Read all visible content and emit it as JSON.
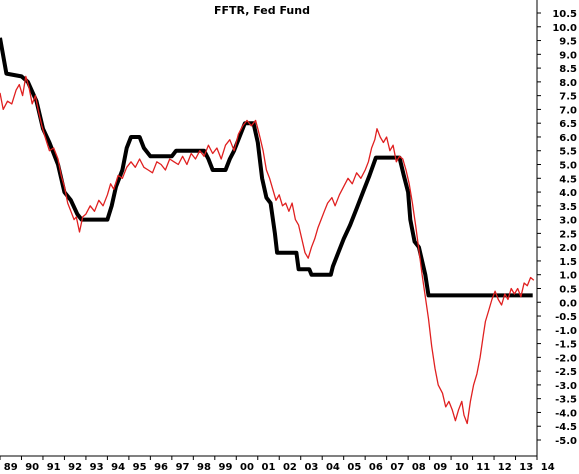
{
  "chart_data": {
    "type": "line",
    "title": "FFTR, Fed Fund",
    "xlabel": "",
    "ylabel": "",
    "xlim": [
      1989,
      2014
    ],
    "ylim": [
      -5.0,
      10.5
    ],
    "grid": false,
    "y_ticks": [
      "10.5",
      "10.0",
      "9.5",
      "9.0",
      "8.5",
      "8.0",
      "7.5",
      "7.0",
      "6.5",
      "6.0",
      "5.5",
      "5.0",
      "4.5",
      "4.0",
      "3.5",
      "3.0",
      "2.5",
      "2.0",
      "1.5",
      "1.0",
      "0.5",
      "0.0",
      "-0.5",
      "-1.0",
      "-1.5",
      "-2.0",
      "-2.5",
      "-3.0",
      "-3.5",
      "-4.0",
      "-4.5",
      "-5.0"
    ],
    "x_ticks": [
      "89",
      "90",
      "91",
      "92",
      "93",
      "94",
      "95",
      "96",
      "97",
      "98",
      "99",
      "00",
      "01",
      "02",
      "03",
      "04",
      "05",
      "06",
      "07",
      "08",
      "09",
      "10",
      "11",
      "12",
      "13",
      "14"
    ],
    "series": [
      {
        "color": "#000000",
        "style": "thick",
        "points": [
          [
            1989.0,
            9.6
          ],
          [
            1989.3,
            8.3
          ],
          [
            1990.0,
            8.2
          ],
          [
            1990.3,
            8.0
          ],
          [
            1990.7,
            7.3
          ],
          [
            1991.0,
            6.3
          ],
          [
            1991.3,
            5.8
          ],
          [
            1991.7,
            5.0
          ],
          [
            1992.0,
            4.0
          ],
          [
            1992.3,
            3.7
          ],
          [
            1992.6,
            3.2
          ],
          [
            1992.8,
            3.0
          ],
          [
            1993.0,
            3.0
          ],
          [
            1994.0,
            3.0
          ],
          [
            1994.2,
            3.5
          ],
          [
            1994.4,
            4.2
          ],
          [
            1994.7,
            4.8
          ],
          [
            1994.9,
            5.6
          ],
          [
            1995.1,
            6.0
          ],
          [
            1995.5,
            6.0
          ],
          [
            1995.7,
            5.6
          ],
          [
            1996.0,
            5.3
          ],
          [
            1997.0,
            5.3
          ],
          [
            1997.2,
            5.5
          ],
          [
            1998.5,
            5.5
          ],
          [
            1998.7,
            5.2
          ],
          [
            1998.9,
            4.8
          ],
          [
            1999.5,
            4.8
          ],
          [
            1999.7,
            5.2
          ],
          [
            1999.9,
            5.5
          ],
          [
            2000.1,
            5.9
          ],
          [
            2000.4,
            6.5
          ],
          [
            2000.8,
            6.5
          ],
          [
            2001.0,
            5.8
          ],
          [
            2001.2,
            4.5
          ],
          [
            2001.4,
            3.8
          ],
          [
            2001.6,
            3.6
          ],
          [
            2001.8,
            2.5
          ],
          [
            2001.9,
            1.8
          ],
          [
            2002.8,
            1.8
          ],
          [
            2002.9,
            1.2
          ],
          [
            2003.4,
            1.2
          ],
          [
            2003.5,
            1.0
          ],
          [
            2004.4,
            1.0
          ],
          [
            2004.5,
            1.3
          ],
          [
            2004.7,
            1.7
          ],
          [
            2005.0,
            2.3
          ],
          [
            2005.3,
            2.8
          ],
          [
            2005.6,
            3.4
          ],
          [
            2005.9,
            4.0
          ],
          [
            2006.2,
            4.6
          ],
          [
            2006.5,
            5.25
          ],
          [
            2007.6,
            5.25
          ],
          [
            2007.8,
            4.6
          ],
          [
            2008.0,
            4.0
          ],
          [
            2008.1,
            3.0
          ],
          [
            2008.3,
            2.2
          ],
          [
            2008.5,
            2.0
          ],
          [
            2008.8,
            1.0
          ],
          [
            2008.95,
            0.25
          ],
          [
            2013.8,
            0.25
          ]
        ]
      },
      {
        "color": "#e02020",
        "style": "thin",
        "points": [
          [
            1989.0,
            7.6
          ],
          [
            1989.15,
            7.0
          ],
          [
            1989.35,
            7.3
          ],
          [
            1989.55,
            7.2
          ],
          [
            1989.75,
            7.7
          ],
          [
            1989.9,
            7.9
          ],
          [
            1990.05,
            7.5
          ],
          [
            1990.2,
            8.2
          ],
          [
            1990.35,
            7.8
          ],
          [
            1990.5,
            7.2
          ],
          [
            1990.65,
            7.5
          ],
          [
            1990.8,
            6.9
          ],
          [
            1990.95,
            6.4
          ],
          [
            1991.1,
            6.0
          ],
          [
            1991.3,
            5.5
          ],
          [
            1991.5,
            5.6
          ],
          [
            1991.7,
            5.2
          ],
          [
            1991.85,
            4.6
          ],
          [
            1992.0,
            4.2
          ],
          [
            1992.15,
            3.6
          ],
          [
            1992.3,
            3.3
          ],
          [
            1992.45,
            3.0
          ],
          [
            1992.55,
            3.1
          ],
          [
            1992.7,
            2.55
          ],
          [
            1992.85,
            3.1
          ],
          [
            1993.0,
            3.2
          ],
          [
            1993.2,
            3.5
          ],
          [
            1993.4,
            3.3
          ],
          [
            1993.6,
            3.7
          ],
          [
            1993.8,
            3.5
          ],
          [
            1994.0,
            3.9
          ],
          [
            1994.15,
            4.3
          ],
          [
            1994.3,
            4.1
          ],
          [
            1994.5,
            4.6
          ],
          [
            1994.7,
            4.5
          ],
          [
            1994.9,
            4.9
          ],
          [
            1995.1,
            5.1
          ],
          [
            1995.3,
            4.9
          ],
          [
            1995.5,
            5.2
          ],
          [
            1995.7,
            4.9
          ],
          [
            1995.9,
            4.8
          ],
          [
            1996.1,
            4.7
          ],
          [
            1996.3,
            5.1
          ],
          [
            1996.5,
            5.0
          ],
          [
            1996.7,
            4.8
          ],
          [
            1996.9,
            5.2
          ],
          [
            1997.1,
            5.1
          ],
          [
            1997.3,
            5.0
          ],
          [
            1997.5,
            5.3
          ],
          [
            1997.7,
            5.0
          ],
          [
            1997.9,
            5.4
          ],
          [
            1998.1,
            5.2
          ],
          [
            1998.3,
            5.5
          ],
          [
            1998.5,
            5.3
          ],
          [
            1998.7,
            5.7
          ],
          [
            1998.9,
            5.4
          ],
          [
            1999.1,
            5.6
          ],
          [
            1999.3,
            5.2
          ],
          [
            1999.5,
            5.7
          ],
          [
            1999.7,
            5.9
          ],
          [
            1999.9,
            5.5
          ],
          [
            2000.1,
            6.1
          ],
          [
            2000.3,
            6.4
          ],
          [
            2000.5,
            6.6
          ],
          [
            2000.7,
            6.4
          ],
          [
            2000.9,
            6.6
          ],
          [
            2001.0,
            6.3
          ],
          [
            2001.1,
            6.0
          ],
          [
            2001.25,
            5.5
          ],
          [
            2001.4,
            4.8
          ],
          [
            2001.55,
            4.5
          ],
          [
            2001.7,
            4.1
          ],
          [
            2001.85,
            3.7
          ],
          [
            2002.0,
            3.9
          ],
          [
            2002.15,
            3.5
          ],
          [
            2002.3,
            3.6
          ],
          [
            2002.45,
            3.3
          ],
          [
            2002.6,
            3.6
          ],
          [
            2002.75,
            3.0
          ],
          [
            2002.9,
            2.8
          ],
          [
            2003.05,
            2.3
          ],
          [
            2003.2,
            1.8
          ],
          [
            2003.35,
            1.6
          ],
          [
            2003.5,
            2.0
          ],
          [
            2003.65,
            2.3
          ],
          [
            2003.8,
            2.7
          ],
          [
            2003.95,
            3.0
          ],
          [
            2004.1,
            3.3
          ],
          [
            2004.25,
            3.6
          ],
          [
            2004.45,
            3.8
          ],
          [
            2004.6,
            3.5
          ],
          [
            2004.8,
            3.9
          ],
          [
            2005.0,
            4.2
          ],
          [
            2005.2,
            4.5
          ],
          [
            2005.4,
            4.3
          ],
          [
            2005.6,
            4.7
          ],
          [
            2005.8,
            4.5
          ],
          [
            2006.0,
            4.8
          ],
          [
            2006.15,
            5.1
          ],
          [
            2006.3,
            5.6
          ],
          [
            2006.45,
            5.9
          ],
          [
            2006.55,
            6.3
          ],
          [
            2006.7,
            6.0
          ],
          [
            2006.85,
            5.8
          ],
          [
            2007.0,
            6.0
          ],
          [
            2007.15,
            5.5
          ],
          [
            2007.3,
            5.7
          ],
          [
            2007.45,
            5.1
          ],
          [
            2007.6,
            5.3
          ],
          [
            2007.75,
            5.2
          ],
          [
            2007.9,
            4.8
          ],
          [
            2008.05,
            4.3
          ],
          [
            2008.2,
            3.6
          ],
          [
            2008.35,
            2.8
          ],
          [
            2008.5,
            1.9
          ],
          [
            2008.65,
            1.0
          ],
          [
            2008.8,
            0.2
          ],
          [
            2008.95,
            -0.6
          ],
          [
            2009.1,
            -1.6
          ],
          [
            2009.25,
            -2.4
          ],
          [
            2009.4,
            -3.0
          ],
          [
            2009.6,
            -3.3
          ],
          [
            2009.75,
            -3.8
          ],
          [
            2009.9,
            -3.6
          ],
          [
            2010.05,
            -3.9
          ],
          [
            2010.2,
            -4.3
          ],
          [
            2010.35,
            -3.9
          ],
          [
            2010.5,
            -3.6
          ],
          [
            2010.6,
            -4.1
          ],
          [
            2010.75,
            -4.4
          ],
          [
            2010.9,
            -3.6
          ],
          [
            2011.05,
            -3.0
          ],
          [
            2011.2,
            -2.6
          ],
          [
            2011.35,
            -2.0
          ],
          [
            2011.5,
            -1.2
          ],
          [
            2011.6,
            -0.7
          ],
          [
            2011.75,
            -0.3
          ],
          [
            2011.9,
            0.1
          ],
          [
            2012.05,
            0.4
          ],
          [
            2012.2,
            0.1
          ],
          [
            2012.35,
            -0.1
          ],
          [
            2012.5,
            0.3
          ],
          [
            2012.65,
            0.1
          ],
          [
            2012.8,
            0.5
          ],
          [
            2012.95,
            0.3
          ],
          [
            2013.1,
            0.5
          ],
          [
            2013.25,
            0.2
          ],
          [
            2013.4,
            0.7
          ],
          [
            2013.55,
            0.6
          ],
          [
            2013.7,
            0.9
          ],
          [
            2013.85,
            0.8
          ]
        ]
      }
    ]
  }
}
